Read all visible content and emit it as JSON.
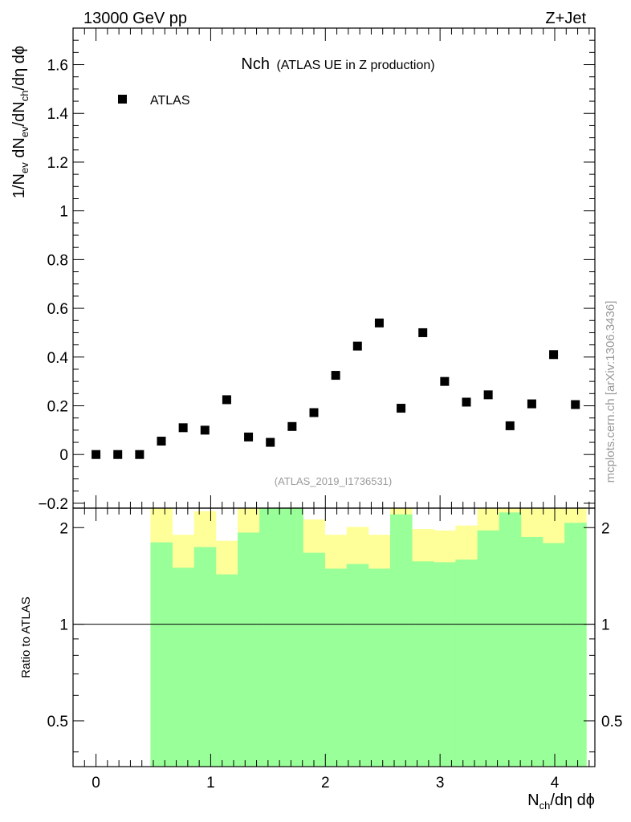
{
  "header": {
    "left": "13000 GeV pp",
    "right": "Z+Jet"
  },
  "plot_title_main": "Nch",
  "plot_title_sub": "(ATLAS UE in Z production)",
  "analysis_id": "(ATLAS_2019_I1736531)",
  "watermark": "mcplots.cern.ch [arXiv:1306.3436]",
  "main_ylabel": "1/N_ev dN_ev/dN_ch/dη dϕ",
  "ratio_ylabel": "Ratio to ATLAS",
  "xlabel": "N_ch/dη dϕ",
  "colors": {
    "band_outer": "#ffff99",
    "band_inner": "#99ff99",
    "marker": "#000000"
  },
  "chart_data": [
    {
      "type": "scatter",
      "xlim": [
        -0.2,
        4.35
      ],
      "ylim": [
        -0.22,
        1.75
      ],
      "yticks": [
        -0.2,
        0,
        0.2,
        0.4,
        0.6,
        0.8,
        1,
        1.2,
        1.4,
        1.6
      ],
      "ytick_labels": [
        "−0.2",
        "0",
        "0.2",
        "0.4",
        "0.6",
        "0.8",
        "1",
        "1.2",
        "1.4",
        "1.6"
      ],
      "xticks": [
        0,
        1,
        2,
        3,
        4
      ],
      "legend": {
        "placement": "top-left",
        "entries": [
          "ATLAS"
        ]
      },
      "series": [
        {
          "name": "ATLAS",
          "x": [
            0,
            0.19,
            0.38,
            0.57,
            0.76,
            0.95,
            1.14,
            1.33,
            1.52,
            1.71,
            1.9,
            2.09,
            2.28,
            2.47,
            2.66,
            2.85,
            3.04,
            3.23,
            3.42,
            3.61,
            3.8,
            3.99,
            4.18
          ],
          "y": [
            0.0,
            0.0,
            0.0,
            0.055,
            0.11,
            0.1,
            0.225,
            0.072,
            0.05,
            0.115,
            0.172,
            0.325,
            0.445,
            0.54,
            0.19,
            0.5,
            0.3,
            0.215,
            0.245,
            0.118,
            0.208,
            0.41,
            0.205
          ]
        }
      ]
    },
    {
      "type": "area",
      "ylim": [
        0.36,
        2.3
      ],
      "yscale": "log",
      "yticks": [
        0.5,
        1,
        2
      ],
      "ytick_labels": [
        "0.5",
        "1",
        "2"
      ],
      "xticks": [
        0,
        1,
        2,
        3,
        4
      ],
      "xtick_labels": [
        "0",
        "1",
        "2",
        "3",
        "4"
      ],
      "reference_line": 1,
      "bins_low": [
        0.475,
        0.665,
        0.855,
        1.045,
        1.235,
        1.425,
        1.615,
        1.805,
        1.995,
        2.185,
        2.375,
        2.565,
        2.755,
        2.945,
        3.135,
        3.325,
        3.515,
        3.705,
        3.895,
        4.085
      ],
      "bins_high": [
        0.665,
        0.855,
        1.045,
        1.235,
        1.425,
        1.615,
        1.805,
        1.995,
        2.185,
        2.375,
        2.565,
        2.755,
        2.945,
        3.135,
        3.325,
        3.515,
        3.705,
        3.895,
        4.085,
        4.275
      ],
      "outer_band": {
        "upper": [
          2.3,
          1.9,
          2.25,
          1.82,
          2.3,
          2.3,
          2.3,
          2.12,
          1.9,
          2.01,
          1.9,
          2.3,
          1.98,
          1.96,
          2.03,
          2.3,
          2.3,
          2.3,
          2.3,
          2.3
        ],
        "lower": [
          0.36,
          0.57,
          0.36,
          0.66,
          0.36,
          0.36,
          0.36,
          0.36,
          0.57,
          0.48,
          0.57,
          0.36,
          0.51,
          0.52,
          0.46,
          0.36,
          0.36,
          0.36,
          0.36,
          0.36
        ]
      },
      "inner_band": {
        "upper": [
          1.8,
          1.5,
          1.74,
          1.43,
          1.93,
          2.3,
          2.3,
          1.67,
          1.49,
          1.54,
          1.49,
          2.2,
          1.57,
          1.56,
          1.59,
          1.96,
          2.23,
          1.87,
          1.79,
          2.07
        ],
        "lower": [
          0.36,
          0.36,
          0.36,
          0.36,
          0.36,
          0.36,
          0.36,
          0.36,
          0.36,
          0.36,
          0.36,
          0.36,
          0.36,
          0.36,
          0.36,
          0.36,
          0.36,
          0.36,
          0.36,
          0.36
        ]
      }
    }
  ]
}
